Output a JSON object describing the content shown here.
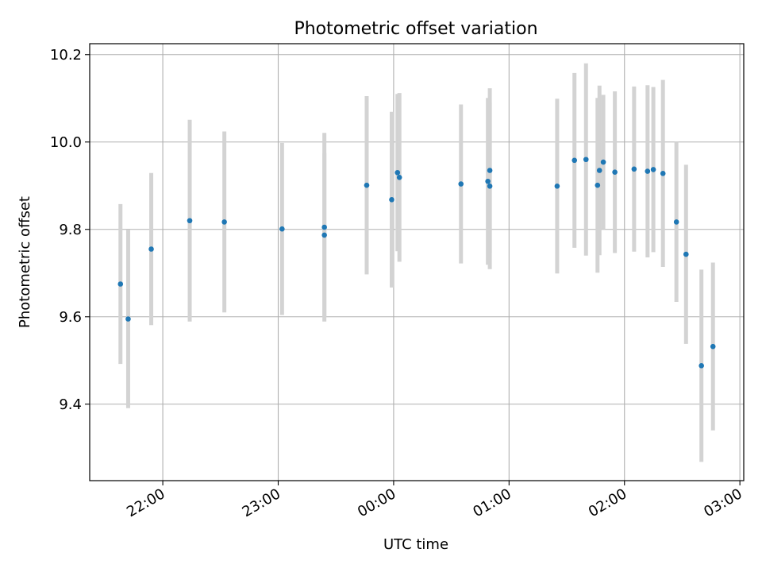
{
  "chart_data": {
    "type": "scatter",
    "title": "Photometric offset variation",
    "xlabel": "UTC time",
    "ylabel": "Photometric offset",
    "x_ticks": [
      "22:00",
      "23:00",
      "00:00",
      "01:00",
      "02:00",
      "03:00"
    ],
    "y_ticks": [
      "9.4",
      "9.6",
      "9.8",
      "10.0",
      "10.2"
    ],
    "xlim": [
      "21:22",
      "03:02"
    ],
    "ylim": [
      9.225,
      10.225
    ],
    "grid": true,
    "colors": {
      "points": "#1f77b4",
      "errorbars": "#d3d3d3",
      "grid": "#b0b0b0"
    },
    "points": [
      {
        "time": "21:38",
        "y": 9.675,
        "err": 0.183
      },
      {
        "time": "21:42",
        "y": 9.595,
        "err": 0.204
      },
      {
        "time": "21:54",
        "y": 9.755,
        "err": 0.174
      },
      {
        "time": "22:14",
        "y": 9.82,
        "err": 0.231
      },
      {
        "time": "22:32",
        "y": 9.817,
        "err": 0.207
      },
      {
        "time": "23:02",
        "y": 9.801,
        "err": 0.197
      },
      {
        "time": "23:24",
        "y": 9.805,
        "err": 0.216
      },
      {
        "time": "23:24",
        "y": 9.787,
        "err": 0.188
      },
      {
        "time": "23:46",
        "y": 9.901,
        "err": 0.204
      },
      {
        "time": "23:59",
        "y": 9.868,
        "err": 0.201
      },
      {
        "time": "00:02",
        "y": 9.93,
        "err": 0.18
      },
      {
        "time": "00:03",
        "y": 9.919,
        "err": 0.193
      },
      {
        "time": "00:35",
        "y": 9.904,
        "err": 0.182
      },
      {
        "time": "00:49",
        "y": 9.91,
        "err": 0.191
      },
      {
        "time": "00:50",
        "y": 9.935,
        "err": 0.188
      },
      {
        "time": "00:50",
        "y": 9.899,
        "err": 0.19
      },
      {
        "time": "01:25",
        "y": 9.899,
        "err": 0.2
      },
      {
        "time": "01:34",
        "y": 9.958,
        "err": 0.2
      },
      {
        "time": "01:40",
        "y": 9.96,
        "err": 0.22
      },
      {
        "time": "01:46",
        "y": 9.901,
        "err": 0.2
      },
      {
        "time": "01:47",
        "y": 9.935,
        "err": 0.194
      },
      {
        "time": "01:49",
        "y": 9.954,
        "err": 0.154
      },
      {
        "time": "01:55",
        "y": 9.931,
        "err": 0.185
      },
      {
        "time": "02:05",
        "y": 9.938,
        "err": 0.189
      },
      {
        "time": "02:12",
        "y": 9.933,
        "err": 0.197
      },
      {
        "time": "02:15",
        "y": 9.937,
        "err": 0.189
      },
      {
        "time": "02:20",
        "y": 9.928,
        "err": 0.214
      },
      {
        "time": "02:27",
        "y": 9.817,
        "err": 0.183
      },
      {
        "time": "02:32",
        "y": 9.743,
        "err": 0.205
      },
      {
        "time": "02:40",
        "y": 9.488,
        "err": 0.22
      },
      {
        "time": "02:46",
        "y": 9.532,
        "err": 0.192
      }
    ]
  }
}
